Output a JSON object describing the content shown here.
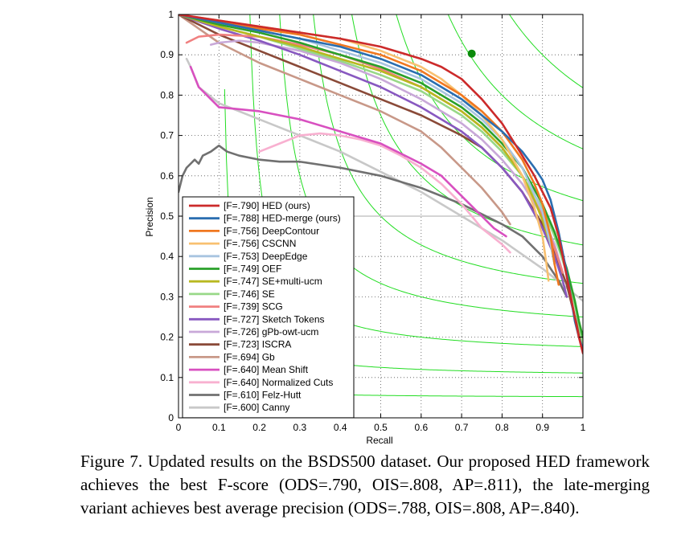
{
  "chart_data": {
    "type": "line",
    "xlabel": "Recall",
    "ylabel": "Precision",
    "xlim": [
      0,
      1
    ],
    "ylim": [
      0,
      1
    ],
    "x_ticks": [
      "0",
      "0.1",
      "0.2",
      "0.3",
      "0.4",
      "0.5",
      "0.6",
      "0.7",
      "0.8",
      "0.9",
      "1"
    ],
    "y_ticks": [
      "0",
      "0.1",
      "0.2",
      "0.3",
      "0.4",
      "0.5",
      "0.6",
      "0.7",
      "0.8",
      "0.9",
      "1"
    ],
    "grid": "dotted",
    "legend_position": "bottom-left",
    "reference_line": {
      "y": 0.5,
      "color": "#bbbbbb"
    },
    "best_point": {
      "x": 0.725,
      "y": 0.903,
      "color": "#0a8a0a"
    },
    "iso_f_curves": {
      "color": "#22dd22",
      "f_values": [
        0.1,
        0.2,
        0.3,
        0.4,
        0.5,
        0.6,
        0.7,
        0.8,
        0.9
      ]
    },
    "series": [
      {
        "name": "[F=.790] HED (ours)",
        "color": "#cc2a2a",
        "points": [
          [
            0,
            1
          ],
          [
            0.1,
            0.985
          ],
          [
            0.2,
            0.97
          ],
          [
            0.3,
            0.955
          ],
          [
            0.4,
            0.94
          ],
          [
            0.5,
            0.92
          ],
          [
            0.6,
            0.89
          ],
          [
            0.65,
            0.87
          ],
          [
            0.7,
            0.84
          ],
          [
            0.75,
            0.79
          ],
          [
            0.8,
            0.73
          ],
          [
            0.85,
            0.65
          ],
          [
            0.88,
            0.6
          ],
          [
            0.9,
            0.56
          ],
          [
            0.92,
            0.52
          ],
          [
            0.94,
            0.45
          ],
          [
            0.95,
            0.4
          ],
          [
            0.96,
            0.35
          ],
          [
            0.97,
            0.3
          ],
          [
            0.98,
            0.25
          ],
          [
            0.99,
            0.2
          ],
          [
            1,
            0.16
          ]
        ]
      },
      {
        "name": "[F=.788] HED-merge (ours)",
        "color": "#2a6eb0",
        "points": [
          [
            0,
            1
          ],
          [
            0.1,
            0.98
          ],
          [
            0.2,
            0.96
          ],
          [
            0.3,
            0.94
          ],
          [
            0.4,
            0.92
          ],
          [
            0.5,
            0.89
          ],
          [
            0.6,
            0.85
          ],
          [
            0.7,
            0.79
          ],
          [
            0.75,
            0.75
          ],
          [
            0.8,
            0.71
          ],
          [
            0.85,
            0.66
          ],
          [
            0.88,
            0.62
          ],
          [
            0.9,
            0.59
          ],
          [
            0.92,
            0.54
          ],
          [
            0.94,
            0.46
          ],
          [
            0.96,
            0.36
          ],
          [
            0.97,
            0.3
          ],
          [
            0.98,
            0.24
          ],
          [
            0.99,
            0.2
          ],
          [
            1,
            0.17
          ]
        ]
      },
      {
        "name": "[F=.756] DeepContour",
        "color": "#f07820",
        "points": [
          [
            0,
            1
          ],
          [
            0.1,
            0.98
          ],
          [
            0.2,
            0.965
          ],
          [
            0.3,
            0.95
          ],
          [
            0.4,
            0.925
          ],
          [
            0.5,
            0.9
          ],
          [
            0.6,
            0.86
          ],
          [
            0.65,
            0.83
          ],
          [
            0.7,
            0.8
          ],
          [
            0.75,
            0.76
          ],
          [
            0.8,
            0.71
          ],
          [
            0.85,
            0.64
          ],
          [
            0.88,
            0.58
          ],
          [
            0.9,
            0.53
          ],
          [
            0.92,
            0.45
          ],
          [
            0.93,
            0.38
          ],
          [
            0.94,
            0.33
          ]
        ]
      },
      {
        "name": "[F=.756] CSCNN",
        "color": "#f8c070",
        "points": [
          [
            0,
            1
          ],
          [
            0.1,
            0.985
          ],
          [
            0.2,
            0.97
          ],
          [
            0.3,
            0.955
          ],
          [
            0.4,
            0.94
          ],
          [
            0.5,
            0.91
          ],
          [
            0.6,
            0.87
          ],
          [
            0.65,
            0.84
          ],
          [
            0.7,
            0.8
          ],
          [
            0.75,
            0.75
          ],
          [
            0.8,
            0.69
          ],
          [
            0.85,
            0.6
          ],
          [
            0.88,
            0.52
          ],
          [
            0.9,
            0.45
          ],
          [
            0.91,
            0.38
          ],
          [
            0.915,
            0.34
          ]
        ]
      },
      {
        "name": "[F=.753] DeepEdge",
        "color": "#a8c4e0",
        "points": [
          [
            0,
            1
          ],
          [
            0.1,
            0.98
          ],
          [
            0.2,
            0.96
          ],
          [
            0.3,
            0.94
          ],
          [
            0.4,
            0.91
          ],
          [
            0.5,
            0.88
          ],
          [
            0.6,
            0.84
          ],
          [
            0.65,
            0.81
          ],
          [
            0.7,
            0.78
          ],
          [
            0.75,
            0.74
          ],
          [
            0.8,
            0.69
          ],
          [
            0.85,
            0.62
          ],
          [
            0.9,
            0.51
          ],
          [
            0.92,
            0.43
          ],
          [
            0.93,
            0.38
          ]
        ]
      },
      {
        "name": "[F=.749] OEF",
        "color": "#2aa02a",
        "points": [
          [
            0,
            1
          ],
          [
            0.1,
            0.975
          ],
          [
            0.2,
            0.955
          ],
          [
            0.3,
            0.93
          ],
          [
            0.4,
            0.9
          ],
          [
            0.5,
            0.87
          ],
          [
            0.6,
            0.83
          ],
          [
            0.7,
            0.77
          ],
          [
            0.75,
            0.73
          ],
          [
            0.8,
            0.68
          ],
          [
            0.85,
            0.62
          ],
          [
            0.9,
            0.53
          ],
          [
            0.93,
            0.46
          ],
          [
            0.96,
            0.37
          ],
          [
            0.98,
            0.29
          ],
          [
            0.99,
            0.24
          ],
          [
            1,
            0.2
          ]
        ]
      },
      {
        "name": "[F=.747] SE+multi-ucm",
        "color": "#b8b820",
        "points": [
          [
            0,
            1
          ],
          [
            0.1,
            0.97
          ],
          [
            0.2,
            0.945
          ],
          [
            0.3,
            0.92
          ],
          [
            0.4,
            0.89
          ],
          [
            0.5,
            0.86
          ],
          [
            0.6,
            0.82
          ],
          [
            0.7,
            0.76
          ],
          [
            0.75,
            0.72
          ],
          [
            0.8,
            0.67
          ],
          [
            0.85,
            0.6
          ],
          [
            0.88,
            0.54
          ],
          [
            0.9,
            0.49
          ],
          [
            0.92,
            0.43
          ],
          [
            0.93,
            0.38
          ]
        ]
      },
      {
        "name": "[F=.746] SE",
        "color": "#98d888",
        "points": [
          [
            0,
            1
          ],
          [
            0.1,
            0.97
          ],
          [
            0.2,
            0.945
          ],
          [
            0.3,
            0.915
          ],
          [
            0.4,
            0.885
          ],
          [
            0.5,
            0.85
          ],
          [
            0.6,
            0.81
          ],
          [
            0.7,
            0.75
          ],
          [
            0.75,
            0.71
          ],
          [
            0.8,
            0.66
          ],
          [
            0.85,
            0.6
          ],
          [
            0.9,
            0.52
          ],
          [
            0.93,
            0.45
          ],
          [
            0.96,
            0.36
          ],
          [
            0.98,
            0.28
          ],
          [
            1,
            0.18
          ]
        ]
      },
      {
        "name": "[F=.739] SCG",
        "color": "#f08080",
        "points": [
          [
            0.02,
            0.93
          ],
          [
            0.05,
            0.945
          ],
          [
            0.1,
            0.95
          ],
          [
            0.2,
            0.945
          ],
          [
            0.3,
            0.925
          ],
          [
            0.4,
            0.9
          ],
          [
            0.5,
            0.865
          ],
          [
            0.6,
            0.82
          ],
          [
            0.7,
            0.76
          ],
          [
            0.75,
            0.72
          ],
          [
            0.8,
            0.67
          ],
          [
            0.85,
            0.6
          ],
          [
            0.9,
            0.5
          ],
          [
            0.93,
            0.42
          ],
          [
            0.95,
            0.36
          ]
        ]
      },
      {
        "name": "[F=.727] Sketch Tokens",
        "color": "#8858c0",
        "points": [
          [
            0,
            1
          ],
          [
            0.1,
            0.965
          ],
          [
            0.2,
            0.935
          ],
          [
            0.3,
            0.9
          ],
          [
            0.4,
            0.86
          ],
          [
            0.5,
            0.82
          ],
          [
            0.6,
            0.77
          ],
          [
            0.7,
            0.71
          ],
          [
            0.75,
            0.67
          ],
          [
            0.8,
            0.62
          ],
          [
            0.85,
            0.56
          ],
          [
            0.9,
            0.47
          ],
          [
            0.93,
            0.4
          ],
          [
            0.95,
            0.34
          ],
          [
            0.96,
            0.3
          ]
        ]
      },
      {
        "name": "[F=.726] gPb-owt-ucm",
        "color": "#c8a8d8",
        "points": [
          [
            0.08,
            0.925
          ],
          [
            0.1,
            0.93
          ],
          [
            0.15,
            0.935
          ],
          [
            0.2,
            0.93
          ],
          [
            0.3,
            0.91
          ],
          [
            0.4,
            0.88
          ],
          [
            0.5,
            0.84
          ],
          [
            0.6,
            0.79
          ],
          [
            0.7,
            0.73
          ],
          [
            0.75,
            0.69
          ],
          [
            0.8,
            0.64
          ],
          [
            0.85,
            0.58
          ],
          [
            0.9,
            0.5
          ],
          [
            0.93,
            0.43
          ],
          [
            0.95,
            0.36
          ]
        ]
      },
      {
        "name": "[F=.723] ISCRA",
        "color": "#8a4a38",
        "points": [
          [
            0,
            1
          ],
          [
            0.1,
            0.95
          ],
          [
            0.2,
            0.91
          ],
          [
            0.3,
            0.87
          ],
          [
            0.4,
            0.83
          ],
          [
            0.5,
            0.79
          ],
          [
            0.6,
            0.75
          ],
          [
            0.7,
            0.7
          ],
          [
            0.75,
            0.67
          ],
          [
            0.8,
            0.62
          ],
          [
            0.85,
            0.56
          ],
          [
            0.9,
            0.48
          ],
          [
            0.93,
            0.41
          ],
          [
            0.96,
            0.33
          ],
          [
            0.98,
            0.25
          ],
          [
            1,
            0.18
          ]
        ]
      },
      {
        "name": "[F=.694] Gb",
        "color": "#c89888",
        "points": [
          [
            0,
            1
          ],
          [
            0.1,
            0.93
          ],
          [
            0.2,
            0.88
          ],
          [
            0.3,
            0.84
          ],
          [
            0.4,
            0.8
          ],
          [
            0.5,
            0.76
          ],
          [
            0.6,
            0.71
          ],
          [
            0.65,
            0.67
          ],
          [
            0.7,
            0.62
          ],
          [
            0.75,
            0.57
          ],
          [
            0.8,
            0.51
          ],
          [
            0.82,
            0.48
          ]
        ]
      },
      {
        "name": "[F=.640] Mean Shift",
        "color": "#d850c0",
        "points": [
          [
            0.03,
            0.87
          ],
          [
            0.05,
            0.82
          ],
          [
            0.08,
            0.79
          ],
          [
            0.1,
            0.77
          ],
          [
            0.15,
            0.765
          ],
          [
            0.2,
            0.76
          ],
          [
            0.3,
            0.74
          ],
          [
            0.4,
            0.71
          ],
          [
            0.5,
            0.68
          ],
          [
            0.6,
            0.63
          ],
          [
            0.65,
            0.6
          ],
          [
            0.7,
            0.55
          ],
          [
            0.75,
            0.5
          ],
          [
            0.78,
            0.47
          ],
          [
            0.81,
            0.45
          ]
        ]
      },
      {
        "name": "[F=.640] Normalized Cuts",
        "color": "#f8b0d0",
        "points": [
          [
            0.2,
            0.66
          ],
          [
            0.25,
            0.68
          ],
          [
            0.3,
            0.7
          ],
          [
            0.35,
            0.705
          ],
          [
            0.4,
            0.7
          ],
          [
            0.45,
            0.69
          ],
          [
            0.5,
            0.675
          ],
          [
            0.55,
            0.65
          ],
          [
            0.6,
            0.62
          ],
          [
            0.65,
            0.58
          ],
          [
            0.7,
            0.53
          ],
          [
            0.75,
            0.47
          ],
          [
            0.8,
            0.43
          ],
          [
            0.82,
            0.41
          ]
        ]
      },
      {
        "name": "[F=.610] Felz-Hutt",
        "color": "#707070",
        "points": [
          [
            0,
            0.56
          ],
          [
            0.01,
            0.6
          ],
          [
            0.02,
            0.62
          ],
          [
            0.03,
            0.63
          ],
          [
            0.04,
            0.64
          ],
          [
            0.05,
            0.63
          ],
          [
            0.06,
            0.65
          ],
          [
            0.08,
            0.66
          ],
          [
            0.1,
            0.675
          ],
          [
            0.12,
            0.66
          ],
          [
            0.15,
            0.65
          ],
          [
            0.2,
            0.64
          ],
          [
            0.25,
            0.635
          ],
          [
            0.3,
            0.635
          ],
          [
            0.4,
            0.62
          ],
          [
            0.5,
            0.6
          ],
          [
            0.6,
            0.57
          ],
          [
            0.7,
            0.53
          ],
          [
            0.8,
            0.48
          ],
          [
            0.85,
            0.45
          ],
          [
            0.9,
            0.4
          ],
          [
            0.94,
            0.34
          ],
          [
            0.96,
            0.3
          ]
        ]
      },
      {
        "name": "[F=.600] Canny",
        "color": "#c8c8c8",
        "points": [
          [
            0.02,
            0.89
          ],
          [
            0.03,
            0.87
          ],
          [
            0.05,
            0.82
          ],
          [
            0.1,
            0.78
          ],
          [
            0.2,
            0.74
          ],
          [
            0.3,
            0.7
          ],
          [
            0.4,
            0.66
          ],
          [
            0.5,
            0.61
          ],
          [
            0.6,
            0.56
          ],
          [
            0.7,
            0.5
          ],
          [
            0.8,
            0.44
          ],
          [
            0.9,
            0.37
          ],
          [
            0.95,
            0.33
          ],
          [
            1,
            0.29
          ]
        ]
      }
    ]
  },
  "caption": {
    "label": "Figure 7.",
    "text": "Updated results on the BSDS500 dataset. Our proposed HED framework achieves the best F-score (ODS=.790, OIS=.808, AP=.811), the late-merging variant achieves best average precision (ODS=.788, OIS=.808, AP=.840)."
  }
}
